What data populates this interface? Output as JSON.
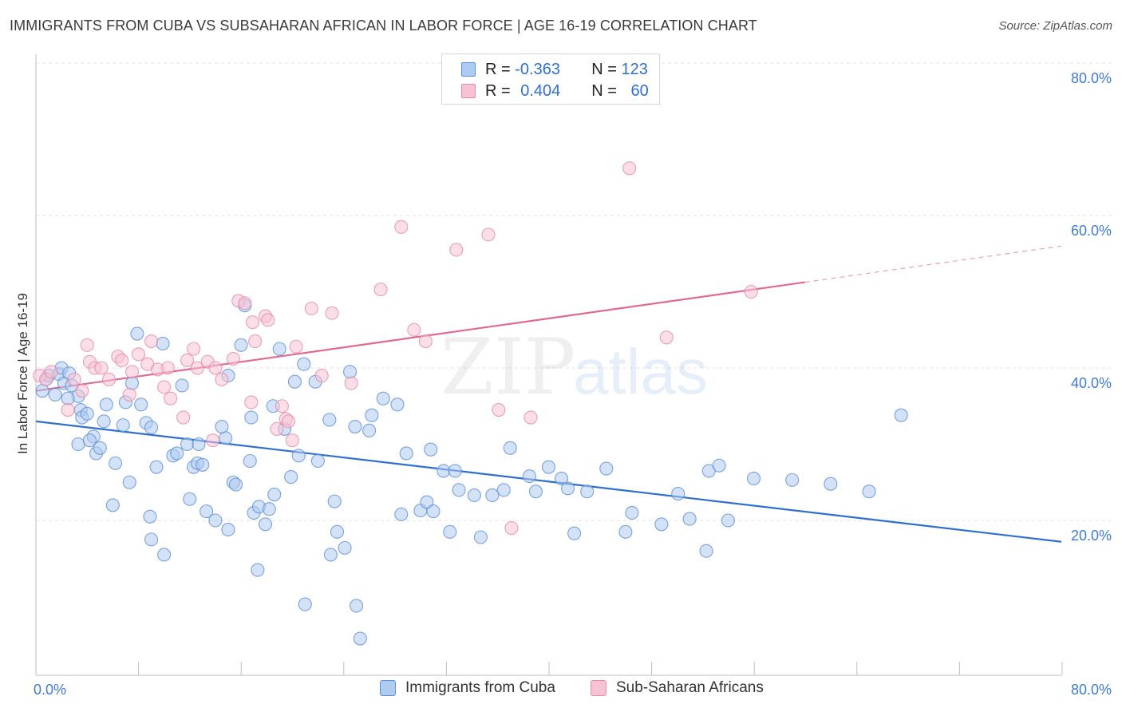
{
  "title": "IMMIGRANTS FROM CUBA VS SUBSAHARAN AFRICAN IN LABOR FORCE | AGE 16-19 CORRELATION CHART",
  "source": "Source: ZipAtlas.com",
  "watermark": {
    "zip": "ZIP",
    "atlas": "atlas"
  },
  "legend": {
    "rows": [
      {
        "r_label": "R = ",
        "r_value": "-0.363",
        "n_label": "N = ",
        "n_value": "123",
        "color": "#aecbf0",
        "border": "#5b8fd8"
      },
      {
        "r_label": "R = ",
        "r_value": "0.404",
        "n_label": "N = ",
        "n_value": "60",
        "color": "#f7c3d3",
        "border": "#e58aa8"
      }
    ]
  },
  "bottom_legend": {
    "items": [
      {
        "label": "Immigrants from Cuba",
        "color": "#aecbf0",
        "border": "#5b8fd8"
      },
      {
        "label": "Sub-Saharan Africans",
        "color": "#f7c3d3",
        "border": "#e58aa8"
      }
    ]
  },
  "chart_data": {
    "type": "scatter",
    "title": "IMMIGRANTS FROM CUBA VS SUBSAHARAN AFRICAN IN LABOR FORCE | AGE 16-19 CORRELATION CHART",
    "xlabel": "",
    "ylabel": "In Labor Force | Age 16-19",
    "xlim": [
      0,
      80
    ],
    "ylim": [
      0,
      80
    ],
    "x_tick_labels": [
      "0.0%",
      "80.0%"
    ],
    "y_tick_labels": [
      "20.0%",
      "40.0%",
      "60.0%",
      "80.0%"
    ],
    "y_ticks": [
      20,
      40,
      60,
      80
    ],
    "grid": true,
    "legend_position": "top-center",
    "series": [
      {
        "name": "Immigrants from Cuba",
        "color": "#5b8fd8",
        "fill": "#aecbf0",
        "trend": {
          "x": [
            0,
            80
          ],
          "y": [
            33.0,
            17.2
          ],
          "dashed_from": null
        },
        "points": [
          [
            0.5,
            37.0
          ],
          [
            0.8,
            38.5
          ],
          [
            1.0,
            39.0
          ],
          [
            1.5,
            36.5
          ],
          [
            1.8,
            39.2
          ],
          [
            2.0,
            40.0
          ],
          [
            2.2,
            38.0
          ],
          [
            2.6,
            39.3
          ],
          [
            2.8,
            37.7
          ],
          [
            3.3,
            36.3
          ],
          [
            3.5,
            34.5
          ],
          [
            3.6,
            33.5
          ],
          [
            4.0,
            34.0
          ],
          [
            4.5,
            31.0
          ],
          [
            4.7,
            28.8
          ],
          [
            5.0,
            29.5
          ],
          [
            3.3,
            30.0
          ],
          [
            4.2,
            30.5
          ],
          [
            5.3,
            33.0
          ],
          [
            5.5,
            35.2
          ],
          [
            6.2,
            27.5
          ],
          [
            6.8,
            32.5
          ],
          [
            7.0,
            35.5
          ],
          [
            7.3,
            25.0
          ],
          [
            7.5,
            38.0
          ],
          [
            7.9,
            44.5
          ],
          [
            8.2,
            35.2
          ],
          [
            8.6,
            32.8
          ],
          [
            9.0,
            32.2
          ],
          [
            8.9,
            20.5
          ],
          [
            9.4,
            27.0
          ],
          [
            9.9,
            43.2
          ],
          [
            10.7,
            28.5
          ],
          [
            11.0,
            28.8
          ],
          [
            11.4,
            37.7
          ],
          [
            11.8,
            30.0
          ],
          [
            12.3,
            27.0
          ],
          [
            12.6,
            27.5
          ],
          [
            13.0,
            27.3
          ],
          [
            12.7,
            30.0
          ],
          [
            13.3,
            21.2
          ],
          [
            14.0,
            20.0
          ],
          [
            14.8,
            30.8
          ],
          [
            15.0,
            39.0
          ],
          [
            15.4,
            25.0
          ],
          [
            15.6,
            24.7
          ],
          [
            15.0,
            18.8
          ],
          [
            16.0,
            43.0
          ],
          [
            16.3,
            48.2
          ],
          [
            16.8,
            33.5
          ],
          [
            17.0,
            21.0
          ],
          [
            17.4,
            21.8
          ],
          [
            17.9,
            19.5
          ],
          [
            18.2,
            21.5
          ],
          [
            18.6,
            23.4
          ],
          [
            19.0,
            42.5
          ],
          [
            19.4,
            32.0
          ],
          [
            19.9,
            25.7
          ],
          [
            20.2,
            38.2
          ],
          [
            20.9,
            40.5
          ],
          [
            21.8,
            38.2
          ],
          [
            22.9,
            33.2
          ],
          [
            23.0,
            15.5
          ],
          [
            23.3,
            22.5
          ],
          [
            23.5,
            18.5
          ],
          [
            24.1,
            16.4
          ],
          [
            24.5,
            39.5
          ],
          [
            25.0,
            8.8
          ],
          [
            26.0,
            31.8
          ],
          [
            26.2,
            33.8
          ],
          [
            27.1,
            36.0
          ],
          [
            28.2,
            35.2
          ],
          [
            28.5,
            20.8
          ],
          [
            30.0,
            21.3
          ],
          [
            30.5,
            22.4
          ],
          [
            31.0,
            21.2
          ],
          [
            31.8,
            26.5
          ],
          [
            32.7,
            26.5
          ],
          [
            32.3,
            18.5
          ],
          [
            33.0,
            24.0
          ],
          [
            34.2,
            23.3
          ],
          [
            34.7,
            17.8
          ],
          [
            35.6,
            23.3
          ],
          [
            37.0,
            29.5
          ],
          [
            39.0,
            23.8
          ],
          [
            40.0,
            27.0
          ],
          [
            41.0,
            25.5
          ],
          [
            41.5,
            24.2
          ],
          [
            43.0,
            23.8
          ],
          [
            44.5,
            26.8
          ],
          [
            46.5,
            21.0
          ],
          [
            50.1,
            23.5
          ],
          [
            51.0,
            20.2
          ],
          [
            52.5,
            26.5
          ],
          [
            54.0,
            20.0
          ],
          [
            56.0,
            25.5
          ],
          [
            59.0,
            25.3
          ],
          [
            62.0,
            24.8
          ],
          [
            65.0,
            23.8
          ],
          [
            67.5,
            33.8
          ],
          [
            2.5,
            36.0
          ],
          [
            6.0,
            22.0
          ],
          [
            10.0,
            15.5
          ],
          [
            9.0,
            17.5
          ],
          [
            12.0,
            22.8
          ],
          [
            14.5,
            32.3
          ],
          [
            16.7,
            27.8
          ],
          [
            20.5,
            28.5
          ],
          [
            22.0,
            27.8
          ],
          [
            24.9,
            32.3
          ],
          [
            28.9,
            28.8
          ],
          [
            30.8,
            29.3
          ],
          [
            36.5,
            24.0
          ],
          [
            38.5,
            25.8
          ],
          [
            42.0,
            18.3
          ],
          [
            46.0,
            18.5
          ],
          [
            48.8,
            19.5
          ],
          [
            52.3,
            16.0
          ],
          [
            53.3,
            27.2
          ],
          [
            18.5,
            35.0
          ],
          [
            21.0,
            9.0
          ],
          [
            25.3,
            4.5
          ],
          [
            17.3,
            13.5
          ]
        ]
      },
      {
        "name": "Sub-Saharan Africans",
        "color": "#e58aa8",
        "fill": "#f7c3d3",
        "trend": {
          "x": [
            0,
            80
          ],
          "y": [
            37.0,
            56.0
          ],
          "dashed_from": 60
        },
        "points": [
          [
            0.3,
            39.0
          ],
          [
            0.8,
            38.5
          ],
          [
            1.2,
            39.5
          ],
          [
            2.5,
            34.5
          ],
          [
            3.0,
            38.5
          ],
          [
            3.6,
            37.0
          ],
          [
            4.2,
            40.8
          ],
          [
            4.6,
            40.0
          ],
          [
            5.1,
            40.0
          ],
          [
            5.7,
            38.5
          ],
          [
            6.4,
            41.5
          ],
          [
            6.7,
            41.0
          ],
          [
            7.5,
            39.5
          ],
          [
            8.0,
            41.8
          ],
          [
            8.7,
            40.5
          ],
          [
            9.5,
            39.8
          ],
          [
            10.3,
            40.0
          ],
          [
            10.5,
            36.0
          ],
          [
            11.8,
            41.0
          ],
          [
            12.3,
            42.5
          ],
          [
            12.6,
            40.0
          ],
          [
            13.4,
            40.8
          ],
          [
            14.0,
            40.0
          ],
          [
            14.5,
            38.5
          ],
          [
            15.4,
            41.2
          ],
          [
            15.8,
            48.8
          ],
          [
            16.3,
            48.5
          ],
          [
            16.9,
            46.0
          ],
          [
            17.1,
            43.5
          ],
          [
            17.9,
            46.8
          ],
          [
            18.1,
            46.3
          ],
          [
            18.8,
            32.0
          ],
          [
            19.2,
            35.0
          ],
          [
            19.5,
            33.3
          ],
          [
            20.0,
            30.5
          ],
          [
            20.3,
            42.8
          ],
          [
            21.5,
            47.8
          ],
          [
            22.3,
            39.0
          ],
          [
            23.1,
            47.2
          ],
          [
            24.6,
            38.0
          ],
          [
            26.9,
            50.3
          ],
          [
            28.5,
            58.5
          ],
          [
            29.5,
            45.0
          ],
          [
            30.4,
            43.5
          ],
          [
            32.8,
            55.5
          ],
          [
            35.3,
            57.5
          ],
          [
            36.1,
            34.5
          ],
          [
            37.1,
            19.0
          ],
          [
            38.6,
            33.5
          ],
          [
            46.3,
            66.2
          ],
          [
            49.2,
            44.0
          ],
          [
            55.8,
            50.0
          ],
          [
            10.0,
            37.5
          ],
          [
            11.5,
            33.5
          ],
          [
            13.8,
            30.5
          ],
          [
            16.8,
            35.5
          ],
          [
            7.3,
            36.5
          ],
          [
            4.0,
            43.0
          ],
          [
            9.0,
            43.5
          ],
          [
            19.7,
            33.0
          ]
        ]
      }
    ]
  }
}
